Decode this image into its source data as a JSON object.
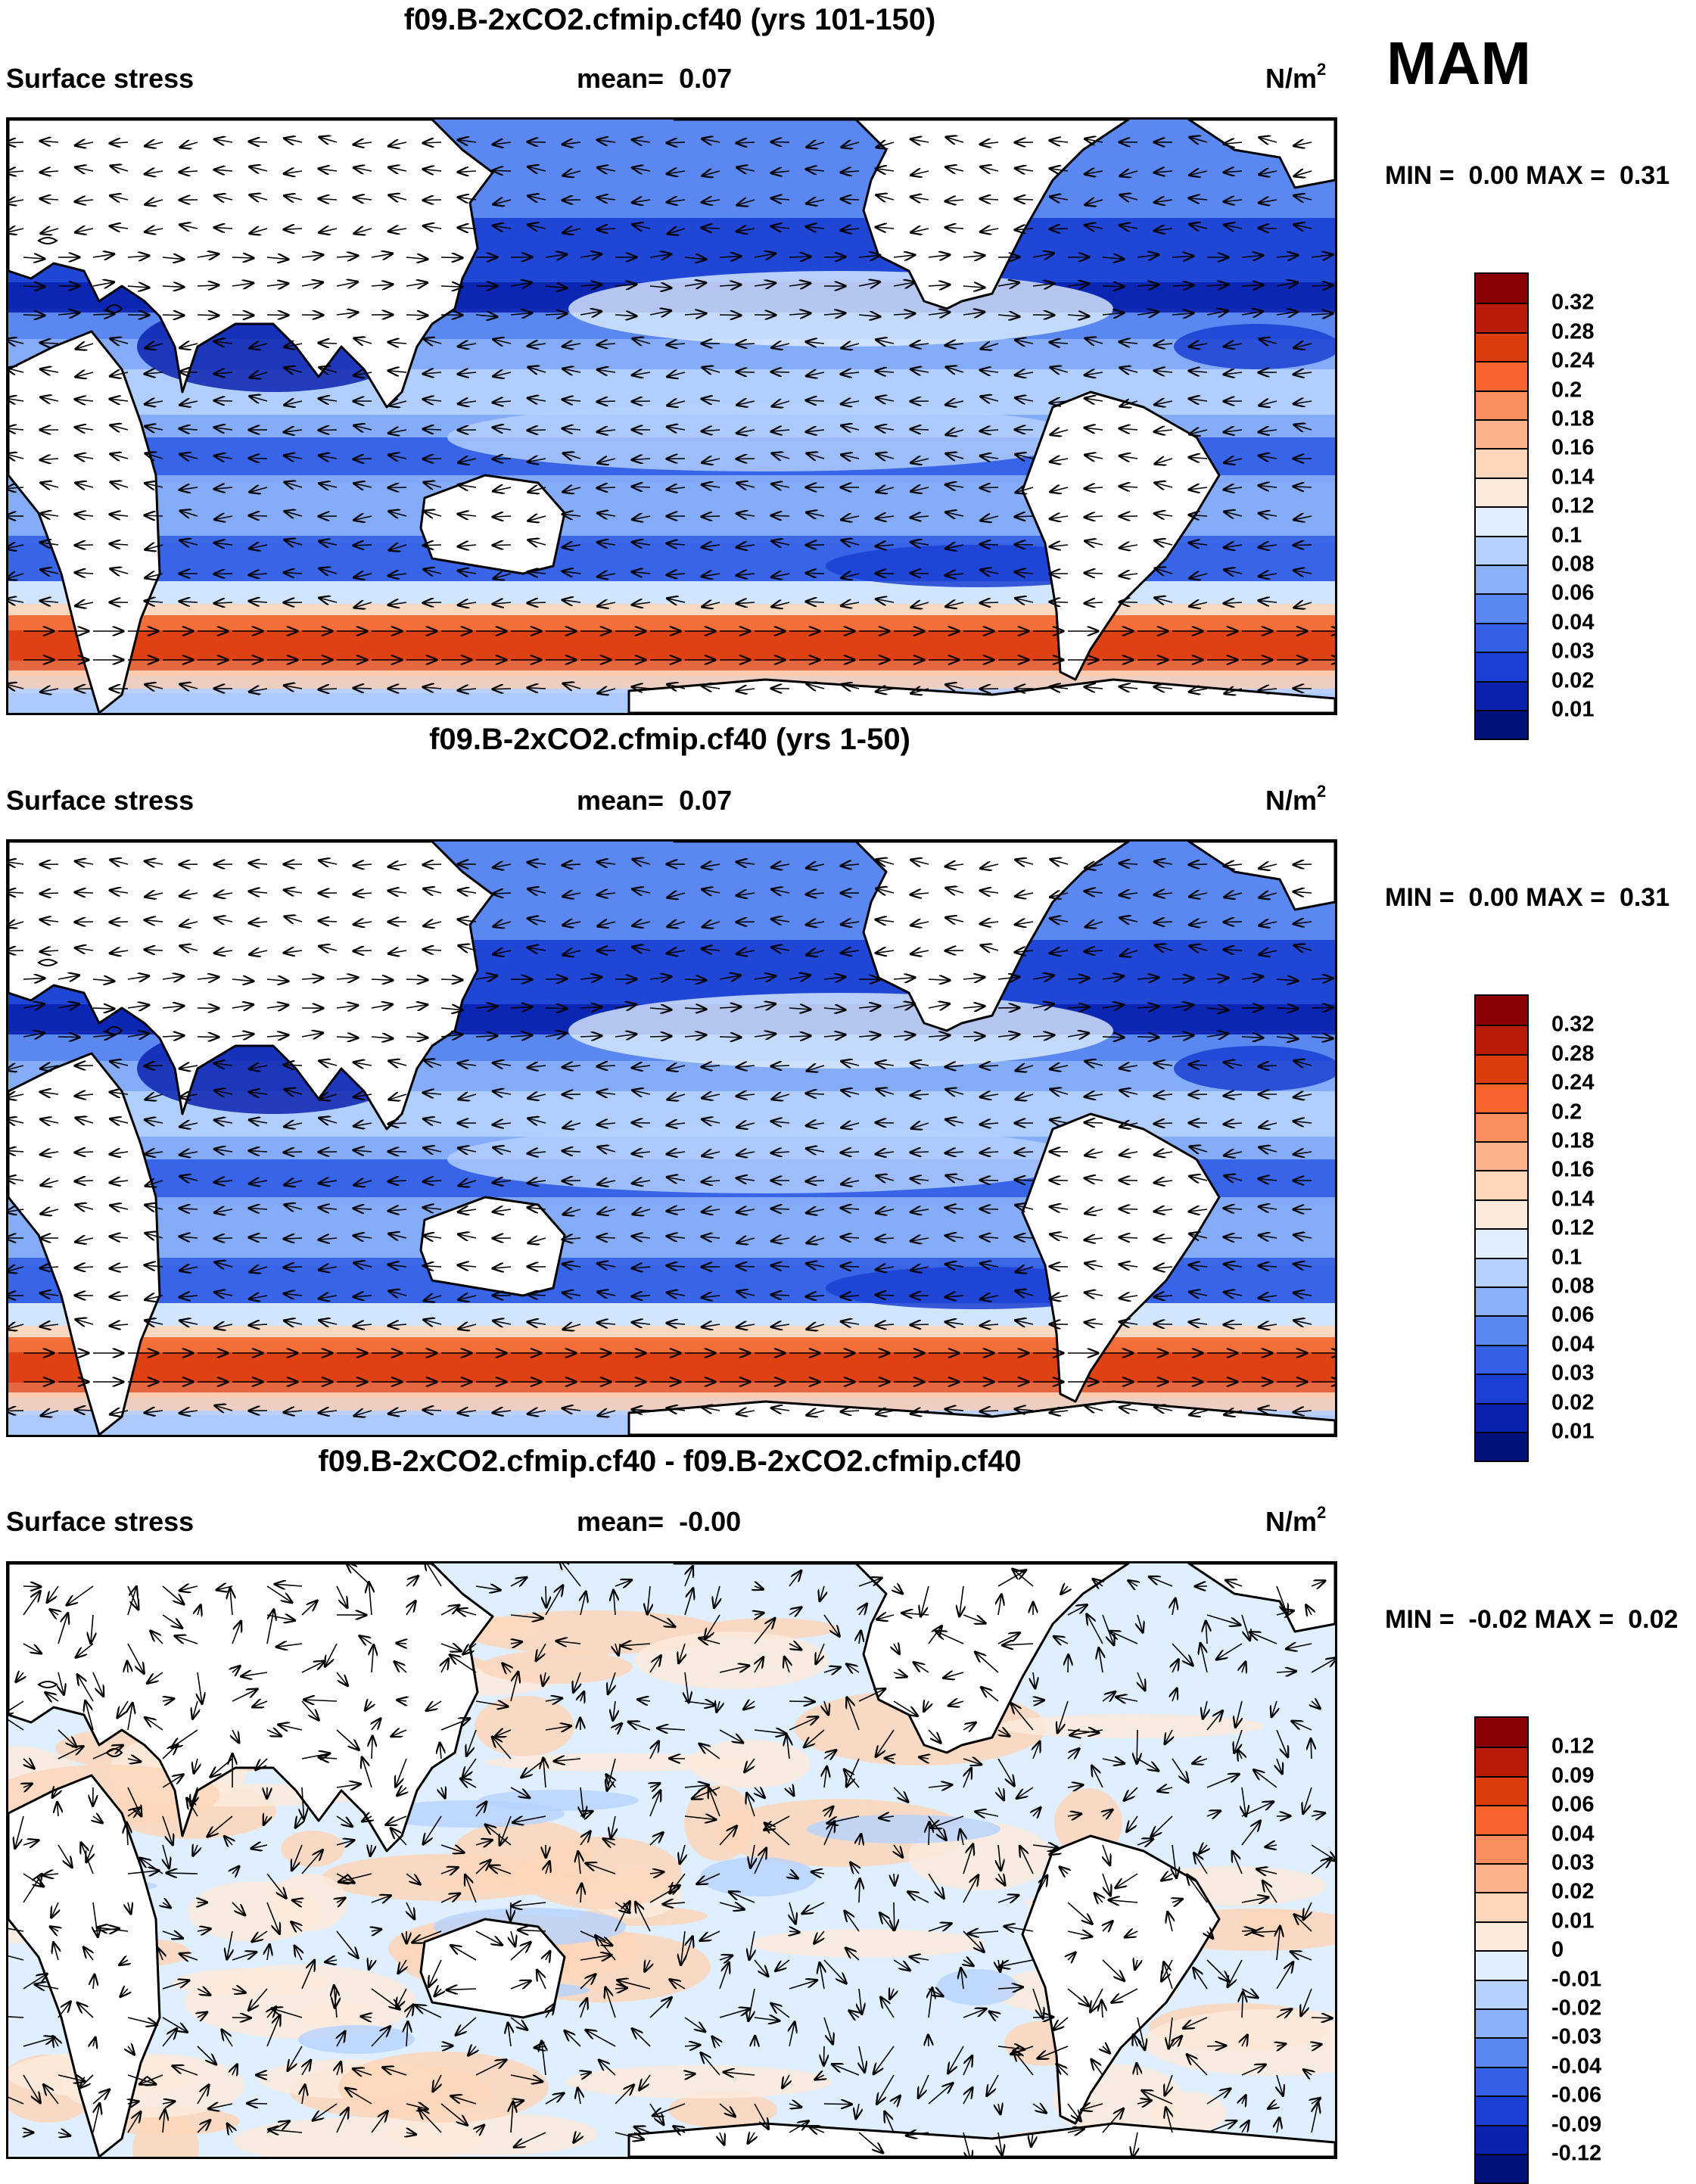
{
  "season": "MAM",
  "panels": [
    {
      "title": "f09.B-2xCO2.cfmip.cf40 (yrs 101-150)",
      "variable": "Surface stress",
      "mean_label": "mean=",
      "mean_value": "0.07",
      "units": "N/m",
      "units_sup": "2",
      "min_label": "MIN =",
      "min_value": "0.00",
      "max_label": "MAX =",
      "max_value": "0.31",
      "field": "magnitude",
      "colorbar": {
        "labels": [
          "0.32",
          "0.28",
          "0.24",
          "0.2",
          "0.18",
          "0.16",
          "0.14",
          "0.12",
          "0.1",
          "0.08",
          "0.06",
          "0.04",
          "0.03",
          "0.02",
          "0.01"
        ],
        "colors": [
          "#8b0000",
          "#b81c05",
          "#dc3d0f",
          "#f4642b",
          "#f88e5c",
          "#fbb28d",
          "#fdd6ba",
          "#fdeadc",
          "#dfefff",
          "#b5d2ff",
          "#8ab0f8",
          "#5b87f0",
          "#3460e6",
          "#1a3fd2",
          "#0a22b0",
          "#03117c"
        ]
      }
    },
    {
      "title": "f09.B-2xCO2.cfmip.cf40 (yrs 1-50)",
      "variable": "Surface stress",
      "mean_label": "mean=",
      "mean_value": "0.07",
      "units": "N/m",
      "units_sup": "2",
      "min_label": "MIN =",
      "min_value": "0.00",
      "max_label": "MAX =",
      "max_value": "0.31",
      "field": "magnitude",
      "colorbar": {
        "labels": [
          "0.32",
          "0.28",
          "0.24",
          "0.2",
          "0.18",
          "0.16",
          "0.14",
          "0.12",
          "0.1",
          "0.08",
          "0.06",
          "0.04",
          "0.03",
          "0.02",
          "0.01"
        ],
        "colors": [
          "#8b0000",
          "#b81c05",
          "#dc3d0f",
          "#f4642b",
          "#f88e5c",
          "#fbb28d",
          "#fdd6ba",
          "#fdeadc",
          "#dfefff",
          "#b5d2ff",
          "#8ab0f8",
          "#5b87f0",
          "#3460e6",
          "#1a3fd2",
          "#0a22b0",
          "#03117c"
        ]
      }
    },
    {
      "title": "f09.B-2xCO2.cfmip.cf40 - f09.B-2xCO2.cfmip.cf40",
      "variable": "Surface stress",
      "mean_label": "mean=",
      "mean_value": "-0.00",
      "units": "N/m",
      "units_sup": "2",
      "min_label": "MIN =",
      "min_value": "-0.02",
      "max_label": "MAX =",
      "max_value": "0.02",
      "field": "difference",
      "colorbar": {
        "labels": [
          "0.12",
          "0.09",
          "0.06",
          "0.04",
          "0.03",
          "0.02",
          "0.01",
          "0",
          "-0.01",
          "-0.02",
          "-0.03",
          "-0.04",
          "-0.06",
          "-0.09",
          "-0.12"
        ],
        "colors": [
          "#8b0000",
          "#b81c05",
          "#dc3d0f",
          "#f4642b",
          "#f88e5c",
          "#fbb28d",
          "#fdd6ba",
          "#fdeadc",
          "#dfefff",
          "#b5d2ff",
          "#8ab0f8",
          "#5b87f0",
          "#3460e6",
          "#1a3fd2",
          "#0a22b0",
          "#03117c"
        ]
      }
    }
  ]
}
